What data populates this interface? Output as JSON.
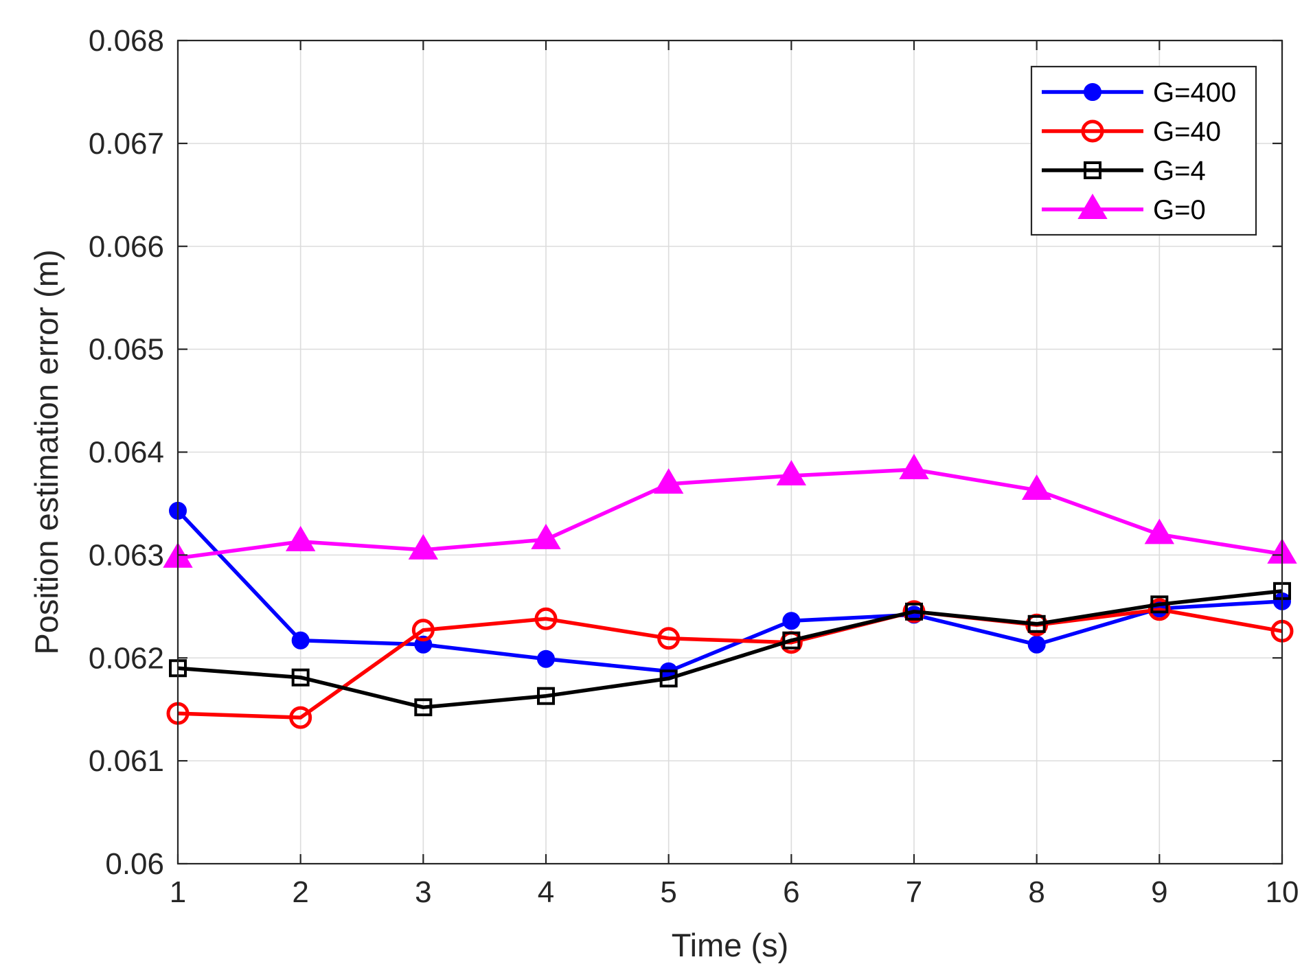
{
  "chart_data": {
    "type": "line",
    "title": "",
    "xlabel": "Time (s)",
    "ylabel": "Position estimation error (m)",
    "xlim": [
      1,
      10
    ],
    "ylim": [
      0.06,
      0.068
    ],
    "x": [
      1,
      2,
      3,
      4,
      5,
      6,
      7,
      8,
      9,
      10
    ],
    "xticks": [
      1,
      2,
      3,
      4,
      5,
      6,
      7,
      8,
      9,
      10
    ],
    "xtick_labels": [
      "1",
      "2",
      "3",
      "4",
      "5",
      "6",
      "7",
      "8",
      "9",
      "10"
    ],
    "yticks": [
      0.06,
      0.061,
      0.062,
      0.063,
      0.064,
      0.065,
      0.066,
      0.067,
      0.068
    ],
    "ytick_labels": [
      "0.06",
      "0.061",
      "0.062",
      "0.063",
      "0.064",
      "0.065",
      "0.066",
      "0.067",
      "0.068"
    ],
    "grid": true,
    "legend_position": "top-right",
    "series": [
      {
        "name": "G=400",
        "color": "#0000ff",
        "marker": "filled-circle",
        "values": [
          0.06343,
          0.06217,
          0.06213,
          0.06199,
          0.06187,
          0.06236,
          0.06242,
          0.06213,
          0.06248,
          0.06255
        ]
      },
      {
        "name": "G=40",
        "color": "#ff0000",
        "marker": "open-circle",
        "values": [
          0.06146,
          0.06142,
          0.06227,
          0.06238,
          0.06219,
          0.06215,
          0.06245,
          0.06232,
          0.06247,
          0.06226
        ]
      },
      {
        "name": "G=4",
        "color": "#000000",
        "marker": "open-square",
        "values": [
          0.0619,
          0.06181,
          0.06152,
          0.06163,
          0.0618,
          0.06217,
          0.06245,
          0.06233,
          0.06252,
          0.06265
        ]
      },
      {
        "name": "G=0",
        "color": "#ff00ff",
        "marker": "filled-triangle",
        "values": [
          0.06297,
          0.06313,
          0.06305,
          0.06315,
          0.06369,
          0.06377,
          0.06383,
          0.06363,
          0.0632,
          0.06301
        ]
      }
    ]
  }
}
